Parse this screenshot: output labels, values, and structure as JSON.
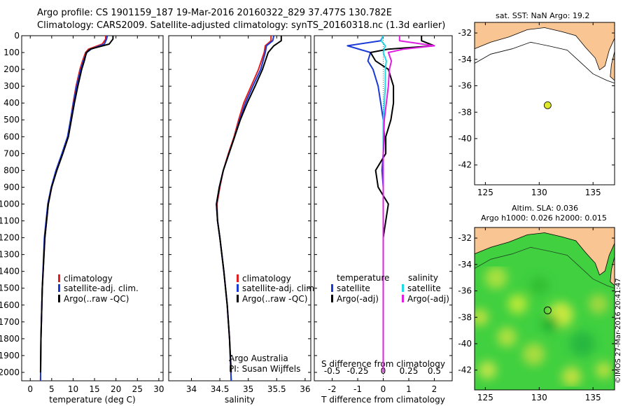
{
  "header": {
    "title_line1": "Argo profile: CS 1901159_187 19-Mar-2016 20160322_829 37.477S 130.782E",
    "title_line2": "Climatology: CARS2009. Satellite-adjusted climatology: synTS_20160318.nc (1.3d earlier)"
  },
  "maps": {
    "sst_title": "sat. SST: NaN Argo: 19.2",
    "sla_title1": "Altim. SLA: 0.036",
    "sla_title2": "Argo h1000: 0.026 h2000: 0.015",
    "lat_ticks": [
      "-32",
      "-34",
      "-36",
      "-38",
      "-40",
      "-42"
    ],
    "lon_ticks": [
      "125",
      "130",
      "135"
    ],
    "argo_lat": -37.477,
    "argo_lon": 130.782,
    "colors": {
      "land": "#f9c592",
      "marker": "#dde82a",
      "sla_base": "#40d040"
    }
  },
  "credit": "©IMOS 27-Mar-2016 20:41:47",
  "notes": {
    "argo_australia": "Argo Australia",
    "pi": "PI: Susan Wijffels"
  },
  "colors": {
    "climatology": "#e02020",
    "satellite": "#1a3ad6",
    "argo": "#000000",
    "sal_sat": "#20d8e8",
    "sal_argo": "#e020e0"
  },
  "chart_data": [
    {
      "type": "line",
      "xlabel": "temperature (deg C)",
      "ylabel": "",
      "xlim": [
        -2,
        31
      ],
      "ylim": [
        2050,
        0
      ],
      "xticks": [
        "0",
        "5",
        "10",
        "15",
        "20",
        "25",
        "30"
      ],
      "yticks": [
        "0",
        "100",
        "200",
        "300",
        "400",
        "500",
        "600",
        "700",
        "800",
        "900",
        "1000",
        "1100",
        "1200",
        "1300",
        "1400",
        "1500",
        "1600",
        "1700",
        "1800",
        "1900",
        "2000"
      ],
      "legend": [
        "climatology",
        "satellite-adj. clim.",
        "Argo(..raw -QC)"
      ],
      "series": [
        {
          "name": "climatology",
          "depth": [
            0,
            20,
            50,
            80,
            100,
            150,
            200,
            300,
            400,
            500,
            600,
            700,
            800,
            900,
            1000,
            1200,
            1500,
            1800,
            2050
          ],
          "values": [
            17.6,
            17.6,
            16.8,
            13.6,
            12.9,
            12.2,
            11.6,
            10.7,
            10.0,
            9.4,
            8.8,
            7.5,
            6.1,
            5.0,
            4.2,
            3.4,
            2.8,
            2.5,
            2.4
          ]
        },
        {
          "name": "satellite-adj. clim.",
          "depth": [
            0,
            20,
            50,
            80,
            100,
            150,
            200,
            300,
            400,
            500,
            600,
            700,
            800,
            900,
            1000,
            1200,
            1500,
            1800,
            2050
          ],
          "values": [
            18.0,
            17.8,
            17.3,
            14.2,
            13.2,
            12.4,
            11.8,
            10.8,
            10.1,
            9.4,
            8.7,
            7.4,
            6.0,
            4.9,
            4.1,
            3.3,
            2.8,
            2.5,
            2.4
          ]
        },
        {
          "name": "Argo(..raw -QC)",
          "depth": [
            0,
            20,
            50,
            80,
            100,
            150,
            200,
            300,
            400,
            500,
            600,
            700,
            800,
            900,
            1000,
            1200,
            1500,
            1800,
            2000
          ],
          "values": [
            19.3,
            19.3,
            18.4,
            14.0,
            13.1,
            12.6,
            12.0,
            11.1,
            10.3,
            9.6,
            8.9,
            7.6,
            6.2,
            5.0,
            4.2,
            3.4,
            2.8,
            2.5,
            2.4
          ]
        }
      ]
    },
    {
      "type": "line",
      "xlabel": "salinity",
      "xlim": [
        33.6,
        36.1
      ],
      "ylim": [
        2050,
        0
      ],
      "xticks": [
        "34",
        "34.5",
        "35",
        "35.5",
        "36"
      ],
      "legend": [
        "climatology",
        "satellite-adj. clim.",
        "Argo(..raw -QC)"
      ],
      "series": [
        {
          "name": "climatology",
          "depth": [
            0,
            30,
            60,
            100,
            200,
            300,
            400,
            500,
            600,
            700,
            800,
            900,
            1000,
            1100,
            1200,
            1400,
            1600,
            1800,
            2050
          ],
          "values": [
            35.4,
            35.4,
            35.3,
            35.28,
            35.18,
            35.05,
            34.92,
            34.83,
            34.75,
            34.65,
            34.56,
            34.5,
            34.45,
            34.46,
            34.5,
            34.57,
            34.63,
            34.67,
            34.7
          ]
        },
        {
          "name": "satellite-adj. clim.",
          "depth": [
            0,
            30,
            60,
            100,
            200,
            300,
            400,
            500,
            600,
            700,
            800,
            900,
            1000,
            1100,
            1200,
            1400,
            1600,
            1800,
            2050
          ],
          "values": [
            35.45,
            35.43,
            35.32,
            35.3,
            35.22,
            35.08,
            34.95,
            34.85,
            34.76,
            34.66,
            34.56,
            34.49,
            34.44,
            34.46,
            34.5,
            34.57,
            34.63,
            34.67,
            34.7
          ]
        },
        {
          "name": "Argo(..raw -QC)",
          "depth": [
            0,
            30,
            60,
            100,
            200,
            300,
            400,
            500,
            600,
            700,
            800,
            900,
            1000,
            1100,
            1200,
            1400,
            1600,
            1800,
            2000
          ],
          "values": [
            35.58,
            35.58,
            35.45,
            35.35,
            35.25,
            35.12,
            34.98,
            34.86,
            34.76,
            34.66,
            34.56,
            34.49,
            34.44,
            34.46,
            34.5,
            34.57,
            34.63,
            34.67,
            34.7
          ]
        }
      ]
    },
    {
      "type": "line",
      "xlabel": "T difference from climatology",
      "x2label": "S difference from climatology",
      "xlim": [
        -2.7,
        2.7
      ],
      "ylim": [
        2050,
        0
      ],
      "xticks": [
        "-2",
        "-1",
        "0",
        "1",
        "2"
      ],
      "x2ticks": [
        "-0.5",
        "-0.25",
        "0",
        "0.25",
        "0.5"
      ],
      "legend_headers": [
        "temperature",
        "salinity"
      ],
      "legend": [
        "satellite",
        "Argo(-adj)",
        "satellite",
        "Argo(-adj)"
      ],
      "series": [
        {
          "name": "satellite",
          "group": "temperature",
          "depth": [
            0,
            30,
            60,
            100,
            150,
            200,
            300,
            400,
            500,
            600,
            700,
            800,
            900,
            1000,
            1200,
            1500,
            2000
          ],
          "values": [
            0,
            -0.1,
            -1.4,
            -0.5,
            -0.6,
            -0.4,
            -0.2,
            -0.1,
            0,
            0.05,
            0,
            -0.05,
            0,
            0,
            0,
            0,
            0
          ]
        },
        {
          "name": "Argo(-adj)",
          "group": "temperature",
          "depth": [
            0,
            30,
            60,
            80,
            100,
            150,
            200,
            300,
            400,
            500,
            600,
            700,
            800,
            900,
            1000,
            1100,
            1200,
            1500,
            2000
          ],
          "values": [
            1.5,
            1.5,
            2.0,
            0.2,
            -0.5,
            -0.3,
            0.2,
            0.4,
            0.4,
            0.3,
            0.1,
            0.1,
            -0.3,
            -0.2,
            0.2,
            0.1,
            0,
            0,
            0
          ]
        },
        {
          "name": "satellite",
          "group": "salinity",
          "depth": [
            0,
            30,
            60,
            100,
            150,
            200,
            300,
            400,
            500,
            700,
            1000,
            1500,
            2000
          ],
          "values": [
            0,
            -0.02,
            0.02,
            0,
            0.03,
            0.02,
            0.02,
            0.01,
            0,
            0,
            0,
            0,
            0
          ]
        },
        {
          "name": "Argo(-adj)",
          "group": "salinity",
          "depth": [
            0,
            30,
            60,
            80,
            100,
            150,
            200,
            300,
            400,
            500,
            700,
            1000,
            1500,
            2000
          ],
          "values": [
            0.16,
            0.16,
            0.5,
            0.2,
            0.05,
            0.08,
            0.06,
            0.05,
            0.03,
            0.01,
            0,
            0,
            0,
            0
          ]
        }
      ]
    }
  ]
}
